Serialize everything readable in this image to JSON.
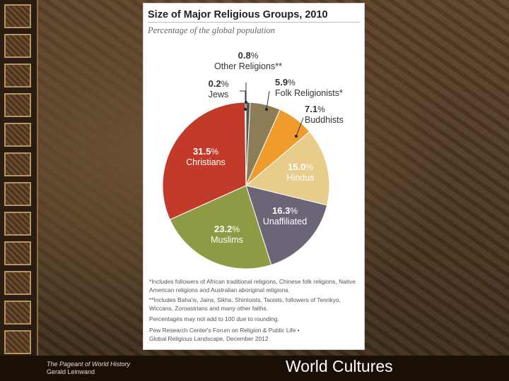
{
  "chart_data": {
    "type": "pie",
    "title": "Size of Major Religious Groups, 2010",
    "subtitle": "Percentage of the global population",
    "slices": [
      {
        "label": "Other Religions**",
        "value_text": "0.8",
        "value": 0.8,
        "color": "#555555"
      },
      {
        "label": "Folk Religionists*",
        "value_text": "5.9",
        "value": 5.9,
        "color": "#8c7d57"
      },
      {
        "label": "Buddhists",
        "value_text": "7.1",
        "value": 7.1,
        "color": "#ef9c2c"
      },
      {
        "label": "Hindus",
        "value_text": "15.0",
        "value": 15.0,
        "color": "#e8cc8a"
      },
      {
        "label": "Unaffiliated",
        "value_text": "16.3",
        "value": 16.3,
        "color": "#6d6577"
      },
      {
        "label": "Muslims",
        "value_text": "23.2",
        "value": 23.2,
        "color": "#8f9a45"
      },
      {
        "label": "Christians",
        "value_text": "31.5",
        "value": 31.5,
        "color": "#c23a2a"
      },
      {
        "label": "Jews",
        "value_text": "0.2",
        "value": 0.2,
        "color": "#bbbbbb"
      }
    ],
    "notes": [
      "*Includes followers of African traditional religions, Chinese folk religions, Native American religions and Australian aboriginal religions.",
      "**Includes Baha'is, Jains, Sikhs, Shintoists, Taoists, followers of Tenrikyo, Wiccans, Zoroastrians and many other faiths.",
      "Percentages may not add to 100 due to rounding."
    ],
    "source": [
      "Pew Research Center's Forum on Religion & Public Life •",
      "Global Religious Landscape, December 2012"
    ]
  },
  "footer": {
    "book": "The Pageant of World History",
    "author": "Gerald Leinwand",
    "slide_title": "World Cultures"
  }
}
